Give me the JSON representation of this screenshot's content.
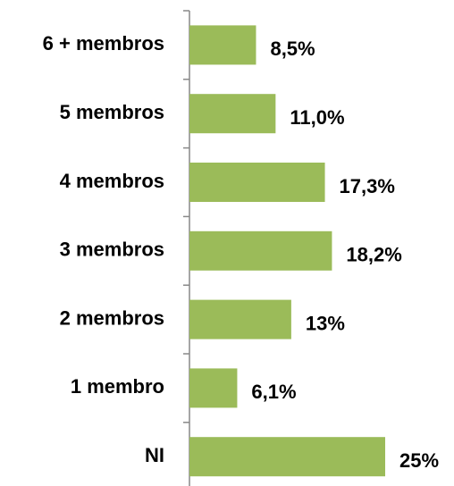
{
  "chart_data": {
    "type": "bar",
    "orientation": "horizontal",
    "categories": [
      "6 + membros",
      "5 membros",
      "4 membros",
      "3 membros",
      "2 membros",
      "1 membro",
      "NI"
    ],
    "values": [
      8.5,
      11.0,
      17.3,
      18.2,
      13,
      6.1,
      25
    ],
    "value_labels": [
      "8,5%",
      "11,0%",
      "17,3%",
      "18,2%",
      "13%",
      "6,1%",
      "25%"
    ],
    "color": "#9bbb59"
  }
}
